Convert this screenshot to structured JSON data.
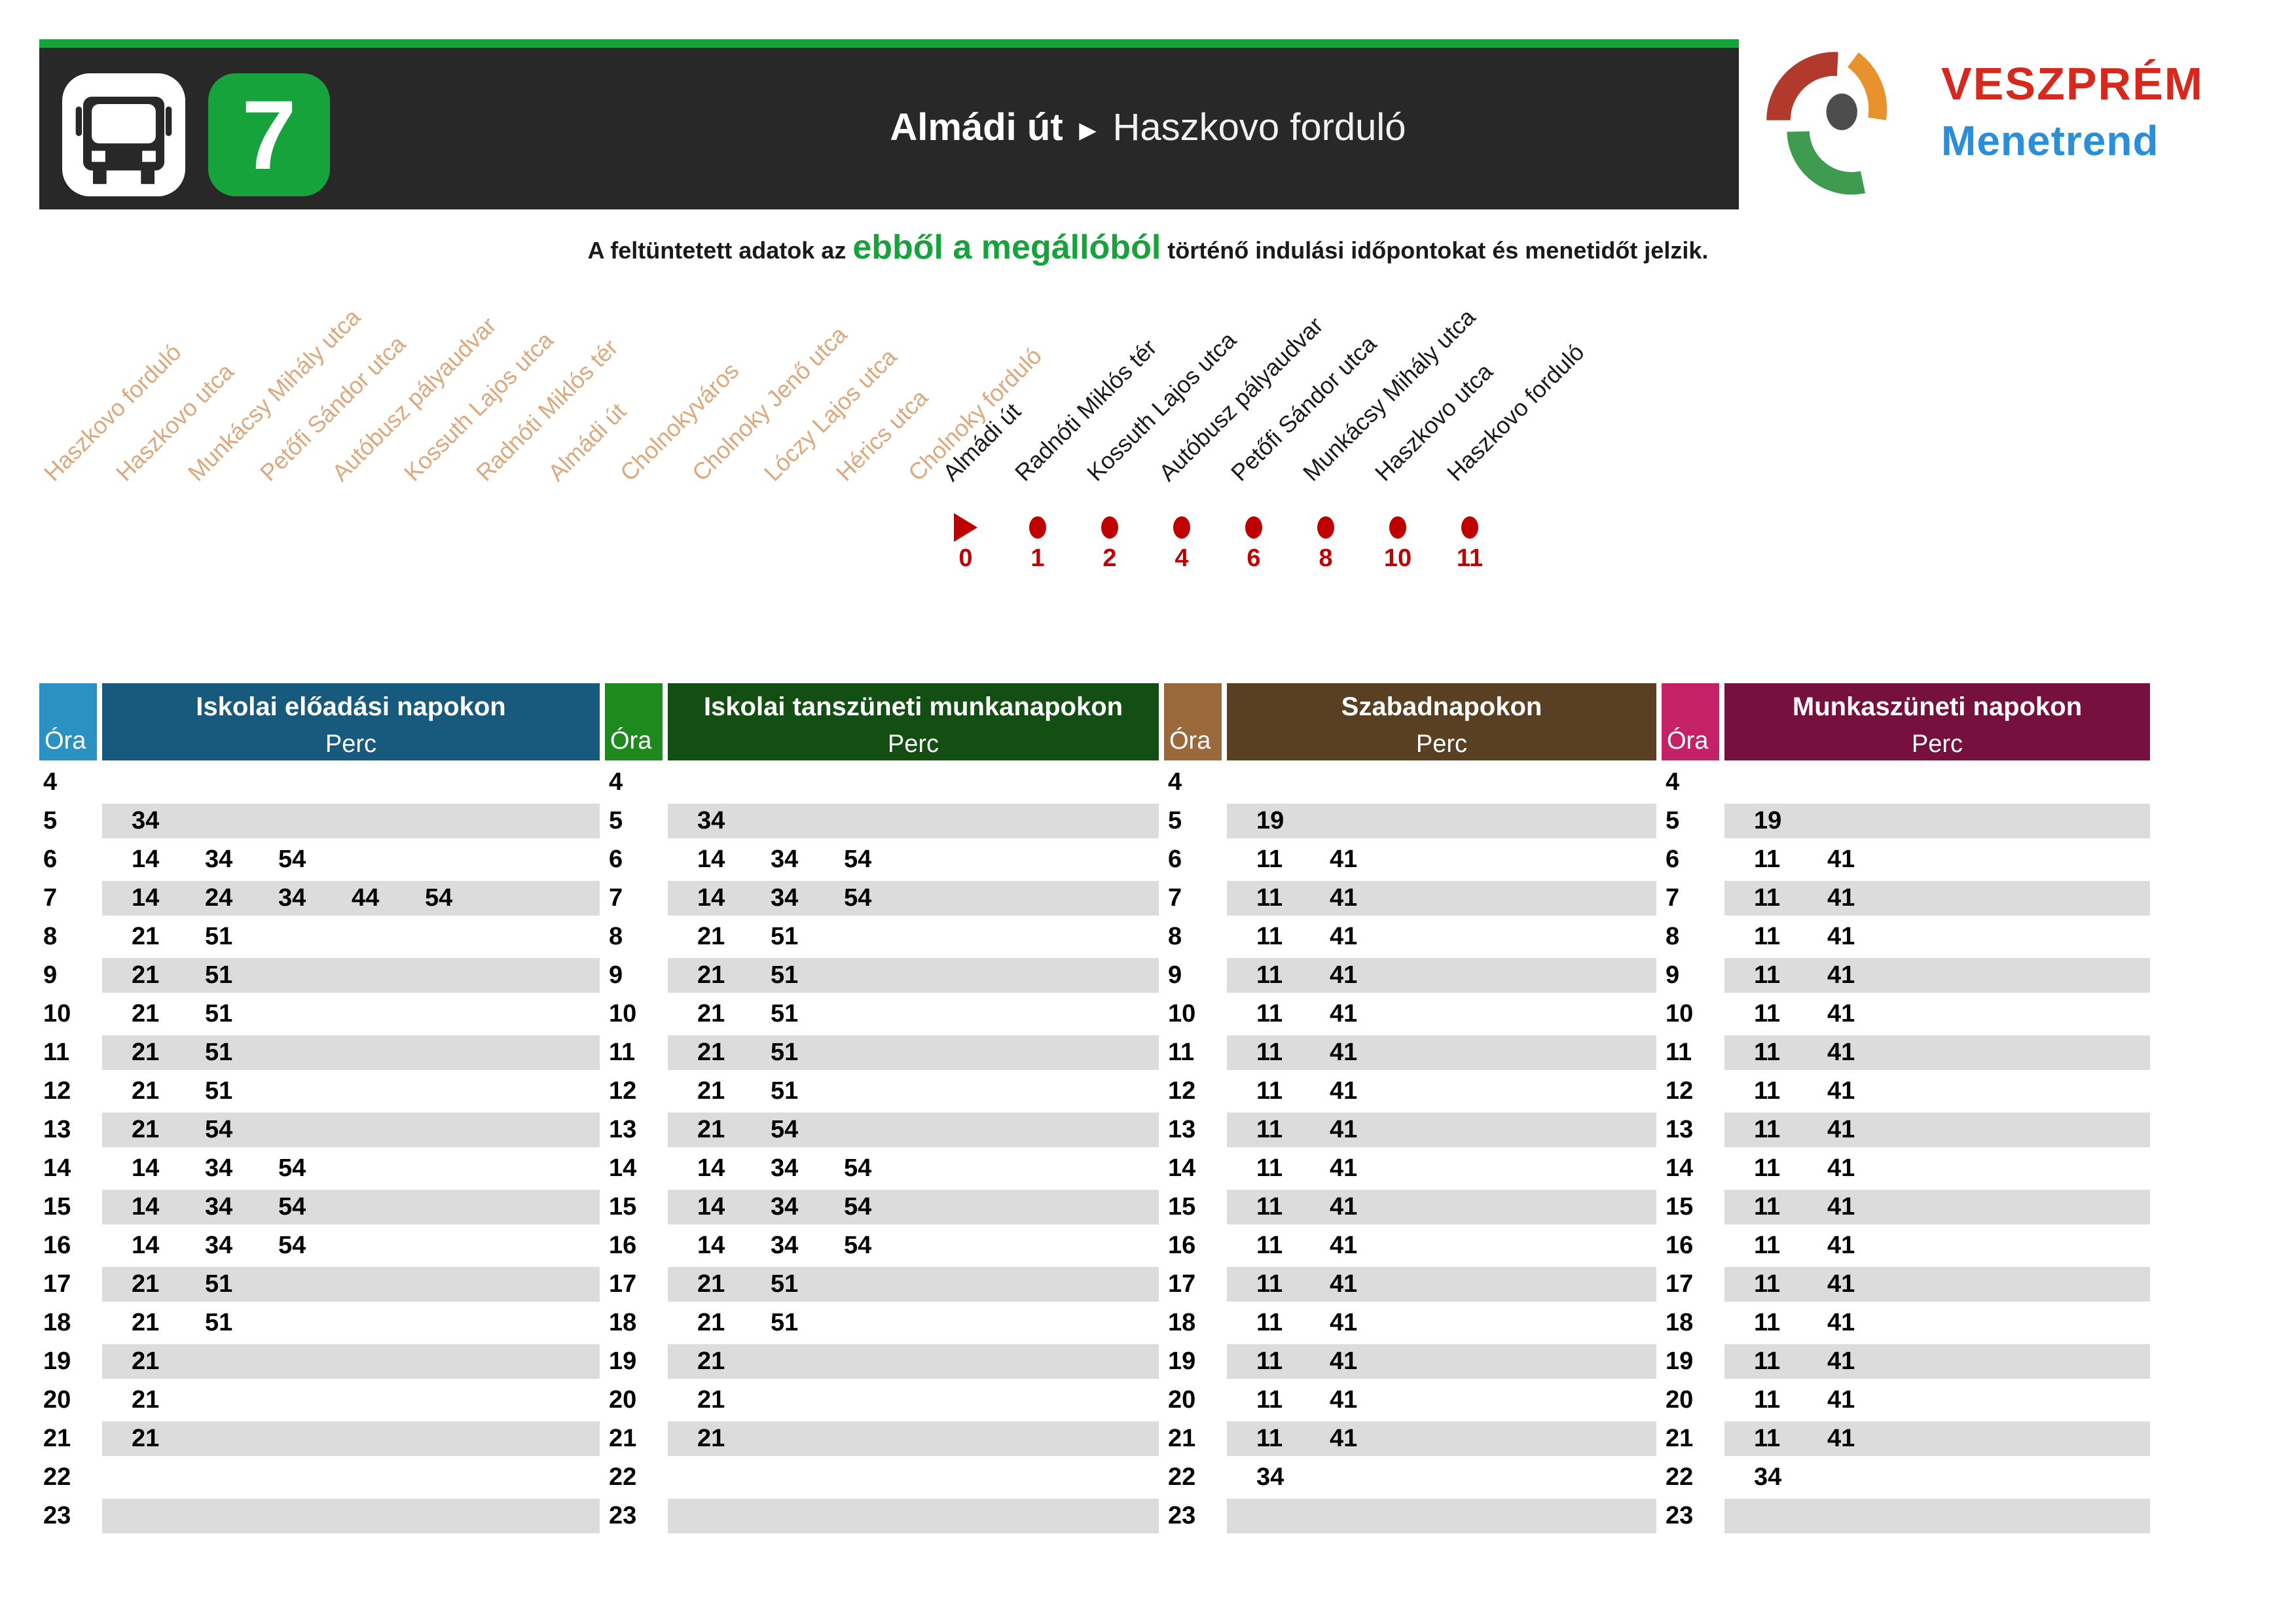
{
  "header": {
    "route_number": "7",
    "title_from": "Almádi út",
    "title_arrow": "►",
    "title_to": "Haszkovo forduló",
    "bar_color": "#282828",
    "accent_green": "#17a33c"
  },
  "logo": {
    "line1": "VESZPRÉM",
    "line2": "Menetrend",
    "line1_color": "#d7281e",
    "line2_color": "#2a8fd8",
    "arc_red": "#b23a2c",
    "arc_orange": "#e8922e",
    "arc_green": "#3f9b50",
    "dot_gray": "#4d4d4d"
  },
  "subtitle": {
    "pre": "A feltüntetett adatok az ",
    "highlight": "ebből a megállóból",
    "post": " történő indulási időpontokat és menetidőt jelzik.",
    "highlight_color": "#17a33c"
  },
  "route_diagram": {
    "inactive_color": "#dca87e",
    "active_color": "#1a1a1a",
    "marker_color": "#c00000",
    "inactive_stops": [
      "Haszkovo forduló",
      "Haszkovo utca",
      "Munkácsy Mihály utca",
      "Petőfi Sándor utca",
      "Autóbusz pályaudvar",
      "Kossuth Lajos utca",
      "Radnóti Miklós tér",
      "Almádi út",
      "Cholnokyváros",
      "Cholnoky Jenő utca",
      "Lóczy Lajos utca",
      "Hérics utca",
      "Cholnoky forduló"
    ],
    "active_stops": [
      {
        "name": "Almádi út",
        "time": "0",
        "marker": "triangle"
      },
      {
        "name": "Radnóti Miklós tér",
        "time": "1",
        "marker": "dot"
      },
      {
        "name": "Kossuth Lajos utca",
        "time": "2",
        "marker": "dot"
      },
      {
        "name": "Autóbusz pályaudvar",
        "time": "4",
        "marker": "dot"
      },
      {
        "name": "Petőfi Sándor utca",
        "time": "6",
        "marker": "dot"
      },
      {
        "name": "Munkácsy Mihály utca",
        "time": "8",
        "marker": "dot"
      },
      {
        "name": "Haszkovo utca",
        "time": "10",
        "marker": "dot"
      },
      {
        "name": "Haszkovo forduló",
        "time": "11",
        "marker": "dot"
      }
    ]
  },
  "timetable": {
    "hour_label": "Óra",
    "minute_label": "Perc",
    "stripe_color": "#dcdcdc",
    "hours": [
      4,
      5,
      6,
      7,
      8,
      9,
      10,
      11,
      12,
      13,
      14,
      15,
      16,
      17,
      18,
      19,
      20,
      21,
      22,
      23
    ],
    "sections": [
      {
        "title": "Iskolai előadási napokon",
        "ora_bg": "#2b91c2",
        "perc_bg": "#175a7d",
        "minutes": [
          [],
          [
            34
          ],
          [
            14,
            34,
            54
          ],
          [
            14,
            24,
            34,
            44,
            54
          ],
          [
            21,
            51
          ],
          [
            21,
            51
          ],
          [
            21,
            51
          ],
          [
            21,
            51
          ],
          [
            21,
            51
          ],
          [
            21,
            54
          ],
          [
            14,
            34,
            54
          ],
          [
            14,
            34,
            54
          ],
          [
            14,
            34,
            54
          ],
          [
            21,
            51
          ],
          [
            21,
            51
          ],
          [
            21
          ],
          [
            21
          ],
          [
            21
          ],
          [],
          []
        ]
      },
      {
        "title": "Iskolai tanszüneti munkanapokon",
        "ora_bg": "#1e8a1e",
        "perc_bg": "#134f12",
        "minutes": [
          [],
          [
            34
          ],
          [
            14,
            34,
            54
          ],
          [
            14,
            34,
            54
          ],
          [
            21,
            51
          ],
          [
            21,
            51
          ],
          [
            21,
            51
          ],
          [
            21,
            51
          ],
          [
            21,
            51
          ],
          [
            21,
            54
          ],
          [
            14,
            34,
            54
          ],
          [
            14,
            34,
            54
          ],
          [
            14,
            34,
            54
          ],
          [
            21,
            51
          ],
          [
            21,
            51
          ],
          [
            21
          ],
          [
            21
          ],
          [
            21
          ],
          [],
          []
        ]
      },
      {
        "title": "Szabadnapokon",
        "ora_bg": "#99693c",
        "perc_bg": "#5a4023",
        "minutes": [
          [],
          [
            19
          ],
          [
            11,
            41
          ],
          [
            11,
            41
          ],
          [
            11,
            41
          ],
          [
            11,
            41
          ],
          [
            11,
            41
          ],
          [
            11,
            41
          ],
          [
            11,
            41
          ],
          [
            11,
            41
          ],
          [
            11,
            41
          ],
          [
            11,
            41
          ],
          [
            11,
            41
          ],
          [
            11,
            41
          ],
          [
            11,
            41
          ],
          [
            11,
            41
          ],
          [
            11,
            41
          ],
          [
            11,
            41
          ],
          [
            34
          ],
          []
        ]
      },
      {
        "title": "Munkaszüneti napokon",
        "ora_bg": "#c42167",
        "perc_bg": "#76113f",
        "minutes": [
          [],
          [
            19
          ],
          [
            11,
            41
          ],
          [
            11,
            41
          ],
          [
            11,
            41
          ],
          [
            11,
            41
          ],
          [
            11,
            41
          ],
          [
            11,
            41
          ],
          [
            11,
            41
          ],
          [
            11,
            41
          ],
          [
            11,
            41
          ],
          [
            11,
            41
          ],
          [
            11,
            41
          ],
          [
            11,
            41
          ],
          [
            11,
            41
          ],
          [
            11,
            41
          ],
          [
            11,
            41
          ],
          [
            11,
            41
          ],
          [
            34
          ],
          []
        ]
      }
    ]
  }
}
